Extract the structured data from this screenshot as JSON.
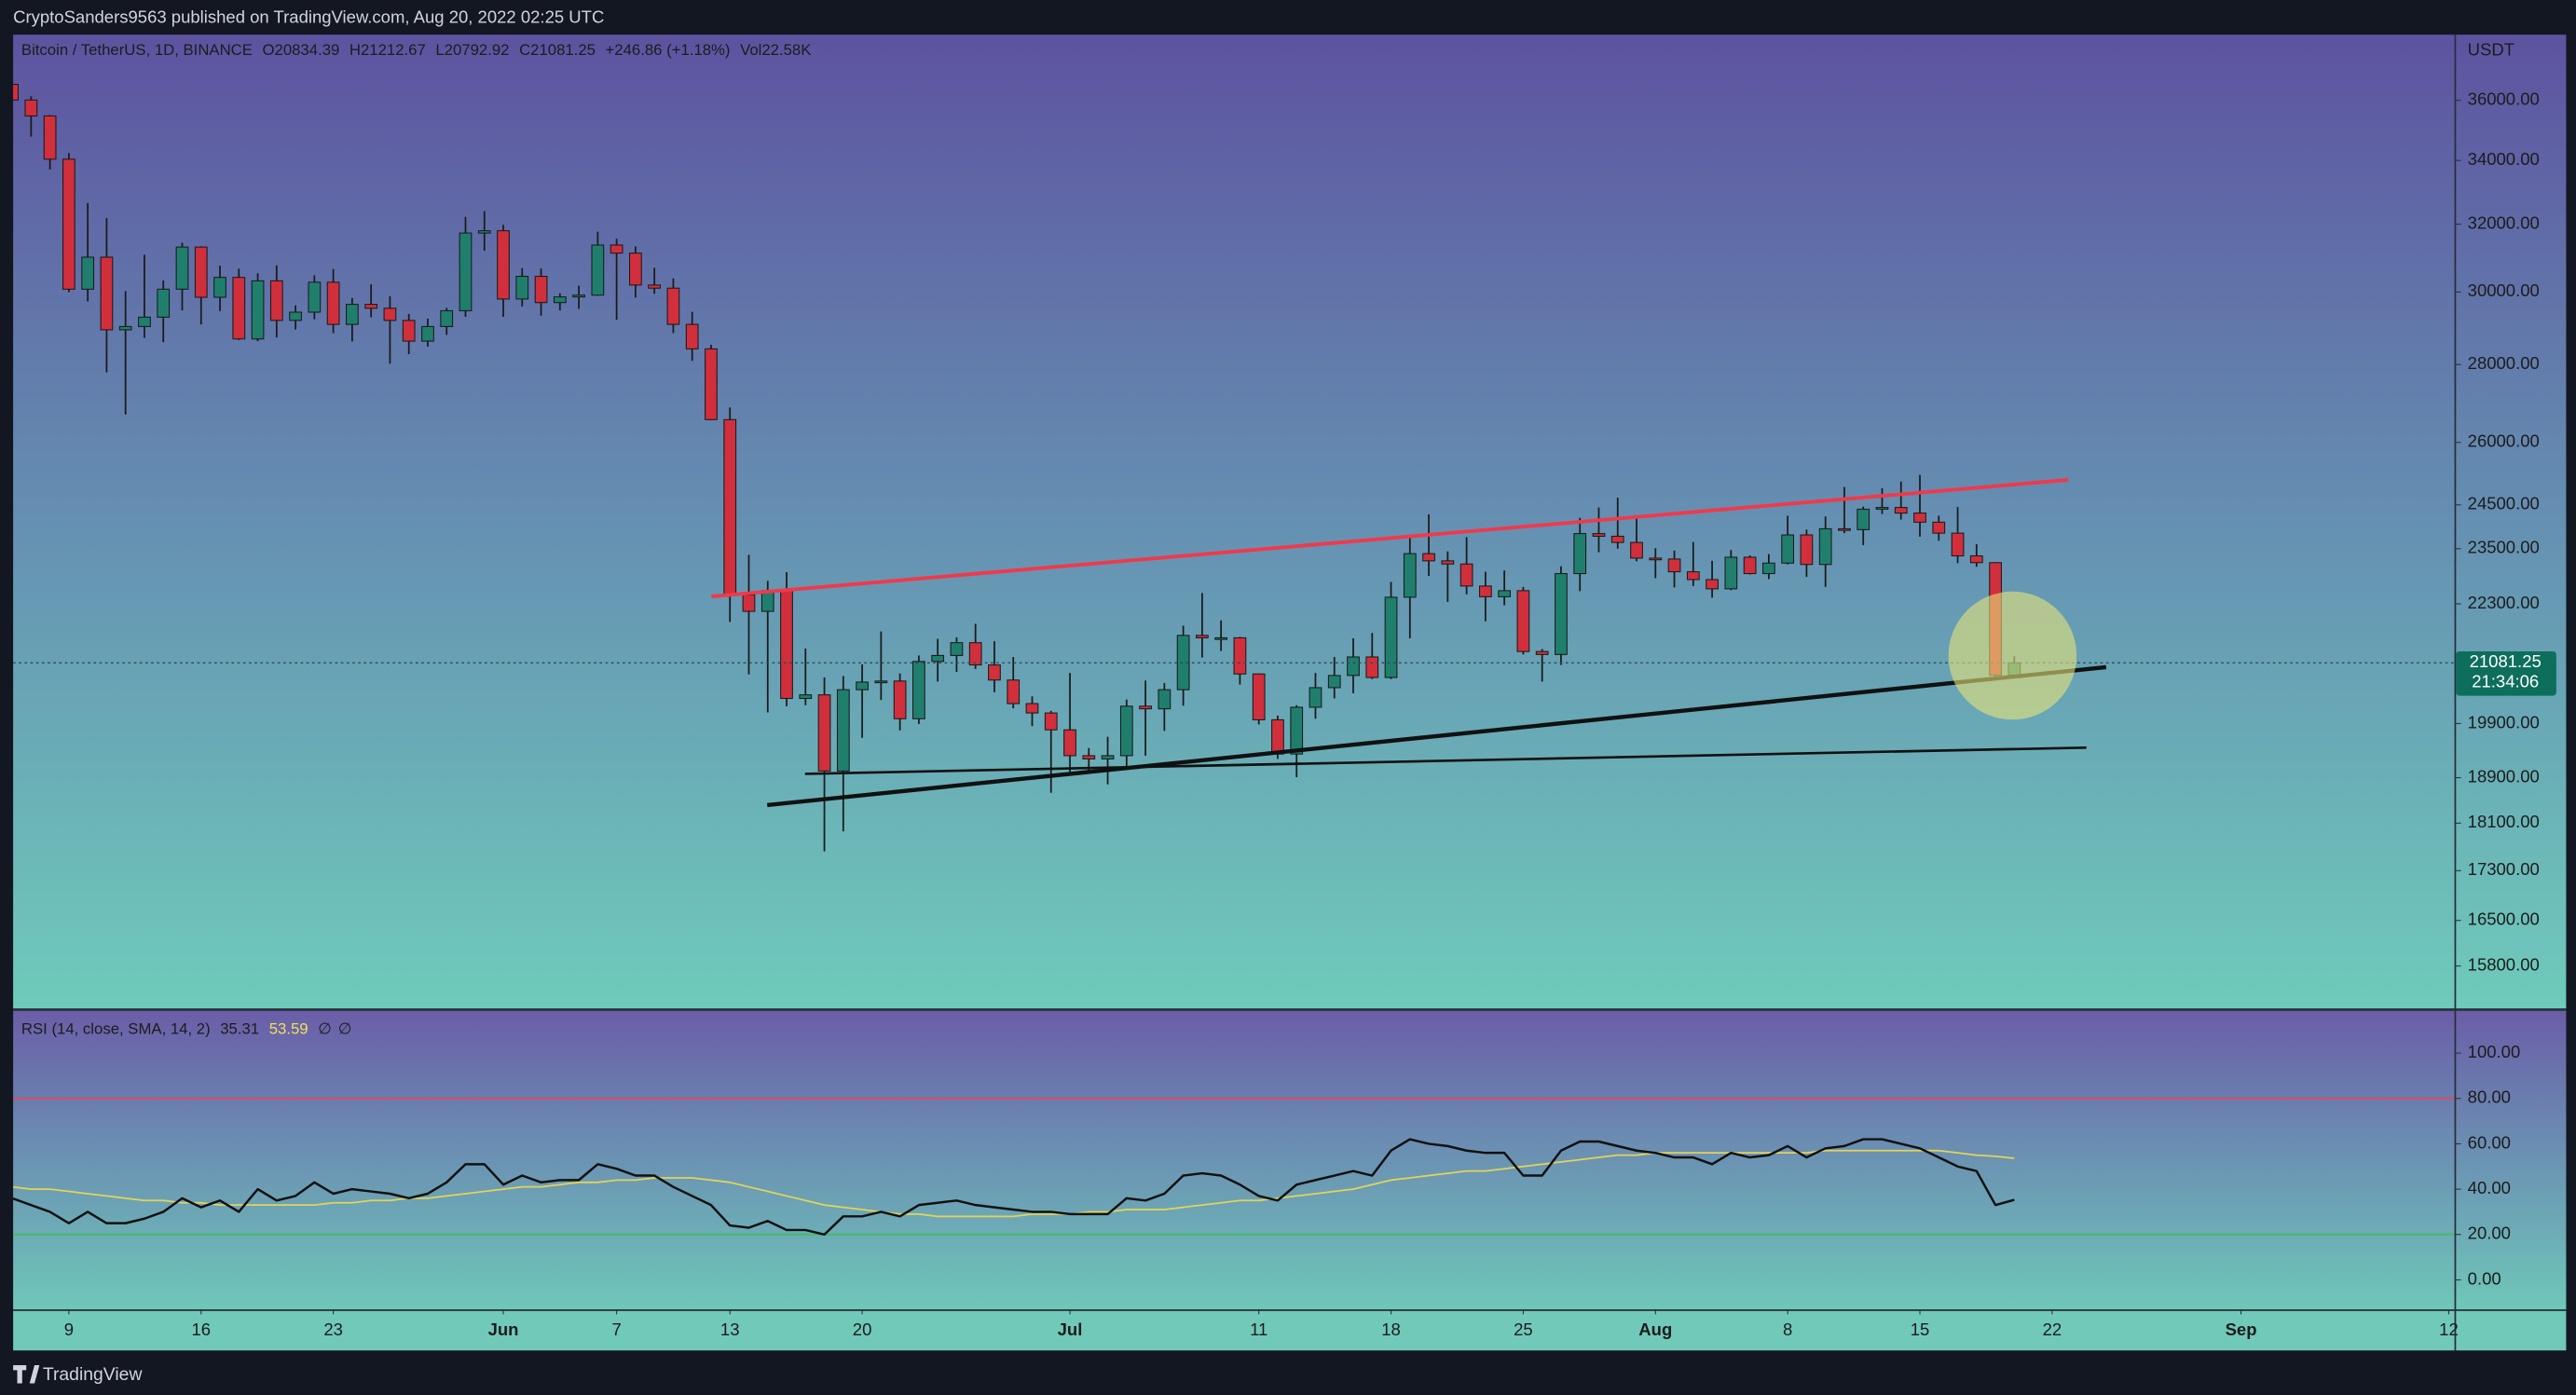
{
  "header": {
    "text": "CryptoSanders9563 published on TradingView.com, Aug 20, 2022 02:25 UTC"
  },
  "footer": {
    "brand": "TradingView"
  },
  "chart_data": [
    {
      "type": "candlestick",
      "title": "Bitcoin / TetherUS, 1D, BINANCE",
      "ohlc_legend": [
        "O20834.39",
        "H21212.67",
        "L20792.92",
        "C21081.25",
        "+246.86 (+1.18%)",
        "Vol22.58K"
      ],
      "currency": "USDT",
      "last_price_label": "21081.25",
      "countdown": "21:34:06",
      "up_color": "#1f7f6c",
      "down_color": "#d12f3c",
      "log_scale": true,
      "xlim": [
        0.05,
        129.3
      ],
      "ylim": [
        15170,
        38320
      ],
      "yticks": [
        {
          "value": 36000,
          "label": "36000.00"
        },
        {
          "value": 34000,
          "label": "34000.00"
        },
        {
          "value": 32000,
          "label": "32000.00"
        },
        {
          "value": 30000,
          "label": "30000.00"
        },
        {
          "value": 28000,
          "label": "28000.00"
        },
        {
          "value": 26000,
          "label": "26000.00"
        },
        {
          "value": 24500,
          "label": "24500.00"
        },
        {
          "value": 23500,
          "label": "23500.00"
        },
        {
          "value": 22300,
          "label": "22300.00"
        },
        {
          "value": 19900,
          "label": "19900.00"
        },
        {
          "value": 18900,
          "label": "18900.00"
        },
        {
          "value": 18100,
          "label": "18100.00"
        },
        {
          "value": 17300,
          "label": "17300.00"
        },
        {
          "value": 16500,
          "label": "16500.00"
        },
        {
          "value": 15800,
          "label": "15800.00"
        }
      ],
      "open": [
        36550,
        36010,
        35470,
        34040,
        30080,
        31010,
        28940,
        29030,
        29290,
        30080,
        31310,
        29850,
        30420,
        28690,
        30320,
        29200,
        29430,
        30280,
        29090,
        29650,
        29540,
        29200,
        28630,
        29030,
        29470,
        31730,
        31800,
        29800,
        30450,
        29700,
        29860,
        29910,
        31370,
        31130,
        30200,
        30110,
        29090,
        28420,
        26570,
        22490,
        22140,
        22580,
        20380,
        20450,
        19020,
        20550,
        20700,
        20720,
        19990,
        21110,
        21230,
        21490,
        21040,
        20740,
        20280,
        20100,
        19780,
        19300,
        19240,
        19300,
        20230,
        20180,
        20550,
        21640,
        21590,
        21590,
        20860,
        19970,
        19330,
        20210,
        20590,
        20830,
        21200,
        20790,
        22440,
        23390,
        23230,
        23160,
        22680,
        22450,
        22580,
        21310,
        21250,
        22950,
        23840,
        23780,
        23640,
        23290,
        23270,
        22990,
        22820,
        22620,
        23310,
        22950,
        23180,
        23810,
        23150,
        23950,
        23930,
        24400,
        24440,
        24310,
        24100,
        23850,
        23340,
        23190,
        20834.39
      ],
      "high": [
        36650,
        36140,
        35500,
        34240,
        32650,
        32190,
        30030,
        31080,
        30330,
        31440,
        31330,
        30760,
        30670,
        30540,
        30770,
        29620,
        30480,
        30660,
        29830,
        30220,
        29880,
        29380,
        29250,
        29550,
        32220,
        32400,
        31980,
        30690,
        30680,
        29960,
        30180,
        31770,
        31560,
        31330,
        30700,
        30390,
        29440,
        28530,
        26880,
        23360,
        22790,
        22980,
        21370,
        20790,
        20820,
        21050,
        21720,
        20870,
        21230,
        21570,
        21600,
        21880,
        21520,
        21200,
        20420,
        20140,
        20880,
        19440,
        19650,
        20360,
        20730,
        20680,
        21840,
        22530,
        21950,
        21610,
        20870,
        20050,
        20250,
        20880,
        21200,
        21580,
        21690,
        22770,
        23800,
        24280,
        23440,
        23760,
        22990,
        23020,
        22660,
        21360,
        23110,
        24200,
        24440,
        24670,
        24190,
        23510,
        23460,
        23650,
        23230,
        23470,
        23350,
        23380,
        24250,
        23930,
        24230,
        24920,
        24460,
        24890,
        25050,
        25210,
        24250,
        24450,
        23600,
        23200,
        21212.67
      ],
      "low": [
        35260,
        34780,
        33710,
        30000,
        29730,
        27790,
        26700,
        28720,
        28600,
        29480,
        29090,
        29460,
        28660,
        28630,
        28730,
        28950,
        29230,
        28850,
        28620,
        29290,
        28020,
        28280,
        28480,
        28800,
        29300,
        31200,
        29300,
        29590,
        29330,
        29480,
        29520,
        29890,
        29220,
        29840,
        29950,
        28850,
        28100,
        26560,
        21920,
        20850,
        20110,
        20230,
        20250,
        17620,
        17960,
        19630,
        20350,
        19770,
        19890,
        20710,
        20900,
        20960,
        20500,
        20190,
        19850,
        18630,
        18970,
        18980,
        18780,
        19040,
        19300,
        19760,
        20240,
        21190,
        21320,
        20650,
        19880,
        19240,
        18910,
        19990,
        20380,
        20480,
        20760,
        20760,
        21580,
        22900,
        22340,
        22500,
        21930,
        22270,
        21250,
        20710,
        21040,
        22570,
        23420,
        23500,
        23220,
        22850,
        22650,
        22680,
        22430,
        22590,
        22930,
        22830,
        23150,
        22880,
        22660,
        23850,
        23580,
        24290,
        24160,
        23770,
        23680,
        23180,
        23100,
        20780,
        20792.92
      ],
      "close": [
        36010,
        35470,
        34040,
        30080,
        31010,
        28940,
        29030,
        29290,
        30080,
        31310,
        29850,
        30420,
        28690,
        30320,
        29200,
        29430,
        30280,
        29090,
        29650,
        29540,
        29200,
        28630,
        29030,
        29470,
        31730,
        31800,
        29800,
        30450,
        29700,
        29860,
        29910,
        31370,
        31130,
        30200,
        30110,
        29090,
        28420,
        26570,
        22490,
        22140,
        22580,
        20380,
        20450,
        19020,
        20550,
        20700,
        20720,
        19990,
        21110,
        21230,
        21490,
        21040,
        20740,
        20280,
        20100,
        19780,
        19300,
        19240,
        19300,
        20230,
        20180,
        20550,
        21640,
        21590,
        21590,
        20860,
        19970,
        19330,
        20210,
        20590,
        20830,
        21200,
        20790,
        22440,
        23390,
        23230,
        23160,
        22680,
        22450,
        22580,
        21310,
        21250,
        22950,
        23840,
        23780,
        23640,
        23290,
        23270,
        22990,
        22820,
        22620,
        23310,
        22950,
        23180,
        23810,
        23150,
        23950,
        23930,
        24400,
        24440,
        24310,
        24100,
        23850,
        23340,
        23190,
        20834.39,
        21081.25
      ]
    },
    {
      "type": "line",
      "title": "RSI (14, close, SMA, 14, 2)",
      "legend_values": [
        "35.31",
        "53.59",
        "∅",
        "∅"
      ],
      "xlim": [
        0.05,
        129.3
      ],
      "ylim": [
        -13,
        118.8
      ],
      "yticks": [
        {
          "value": 100,
          "label": "100.00"
        },
        {
          "value": 80,
          "label": "80.00"
        },
        {
          "value": 60,
          "label": "60.00"
        },
        {
          "value": 40,
          "label": "40.00"
        },
        {
          "value": 20,
          "label": "20.00"
        },
        {
          "value": 0,
          "label": "0.00"
        }
      ],
      "bands": [
        {
          "value": 80,
          "color": "#e8455a"
        },
        {
          "value": 20,
          "color": "#3fbf58"
        }
      ],
      "xticks": [
        {
          "value": 3,
          "label": "9"
        },
        {
          "value": 10,
          "label": "16"
        },
        {
          "value": 17,
          "label": "23"
        },
        {
          "value": 26,
          "label": "Jun"
        },
        {
          "value": 32,
          "label": "7"
        },
        {
          "value": 38,
          "label": "13"
        },
        {
          "value": 45,
          "label": "20"
        },
        {
          "value": 56,
          "label": "Jul"
        },
        {
          "value": 66,
          "label": "11"
        },
        {
          "value": 73,
          "label": "18"
        },
        {
          "value": 80,
          "label": "25"
        },
        {
          "value": 87,
          "label": "Aug"
        },
        {
          "value": 94,
          "label": "8"
        },
        {
          "value": 101,
          "label": "15"
        },
        {
          "value": 108,
          "label": "22"
        },
        {
          "value": 118,
          "label": "Sep"
        },
        {
          "value": 129,
          "label": "12"
        }
      ],
      "series": [
        {
          "color": "#111111",
          "values": [
            36,
            33,
            30,
            25,
            30,
            25,
            25,
            27,
            30,
            36,
            32,
            35,
            30,
            40,
            35,
            37,
            43,
            38,
            40,
            39,
            38,
            36,
            38,
            43,
            51,
            51,
            42,
            46,
            43,
            44,
            44,
            51,
            49,
            46,
            46,
            41,
            37,
            33,
            24,
            23,
            26,
            22,
            22,
            20,
            28,
            28,
            30,
            28,
            33,
            34,
            35,
            33,
            32,
            31,
            30,
            30,
            29,
            29,
            29,
            36,
            35,
            38,
            46,
            47,
            46,
            42,
            37,
            35,
            42,
            44,
            46,
            48,
            46,
            57,
            62,
            60,
            59,
            57,
            56,
            56,
            46,
            46,
            57,
            61,
            61,
            59,
            57,
            56,
            54,
            54,
            51,
            56,
            54,
            55,
            59,
            54,
            58,
            59,
            62,
            62,
            60,
            58,
            54,
            50,
            48,
            33,
            35.31
          ]
        },
        {
          "color": "#e3d35a",
          "values": [
            41,
            40,
            40,
            39,
            38,
            37,
            36,
            35,
            35,
            34,
            34,
            33,
            33,
            33,
            33,
            33,
            33,
            34,
            34,
            35,
            35,
            36,
            36,
            37,
            38,
            39,
            40,
            41,
            41,
            42,
            43,
            43,
            44,
            44,
            45,
            45,
            45,
            44,
            43,
            41,
            39,
            37,
            35,
            33,
            32,
            31,
            30,
            29,
            29,
            28,
            28,
            28,
            28,
            28,
            29,
            29,
            29,
            30,
            30,
            31,
            31,
            31,
            32,
            33,
            34,
            35,
            35,
            36,
            37,
            38,
            39,
            40,
            42,
            44,
            45,
            46,
            47,
            48,
            48,
            49,
            50,
            51,
            52,
            53,
            54,
            55,
            55,
            56,
            56,
            56,
            56,
            56,
            56,
            56,
            56,
            56,
            57,
            57,
            57,
            57,
            57,
            57,
            57,
            56,
            55,
            54.5,
            53.59
          ]
        }
      ]
    }
  ]
}
